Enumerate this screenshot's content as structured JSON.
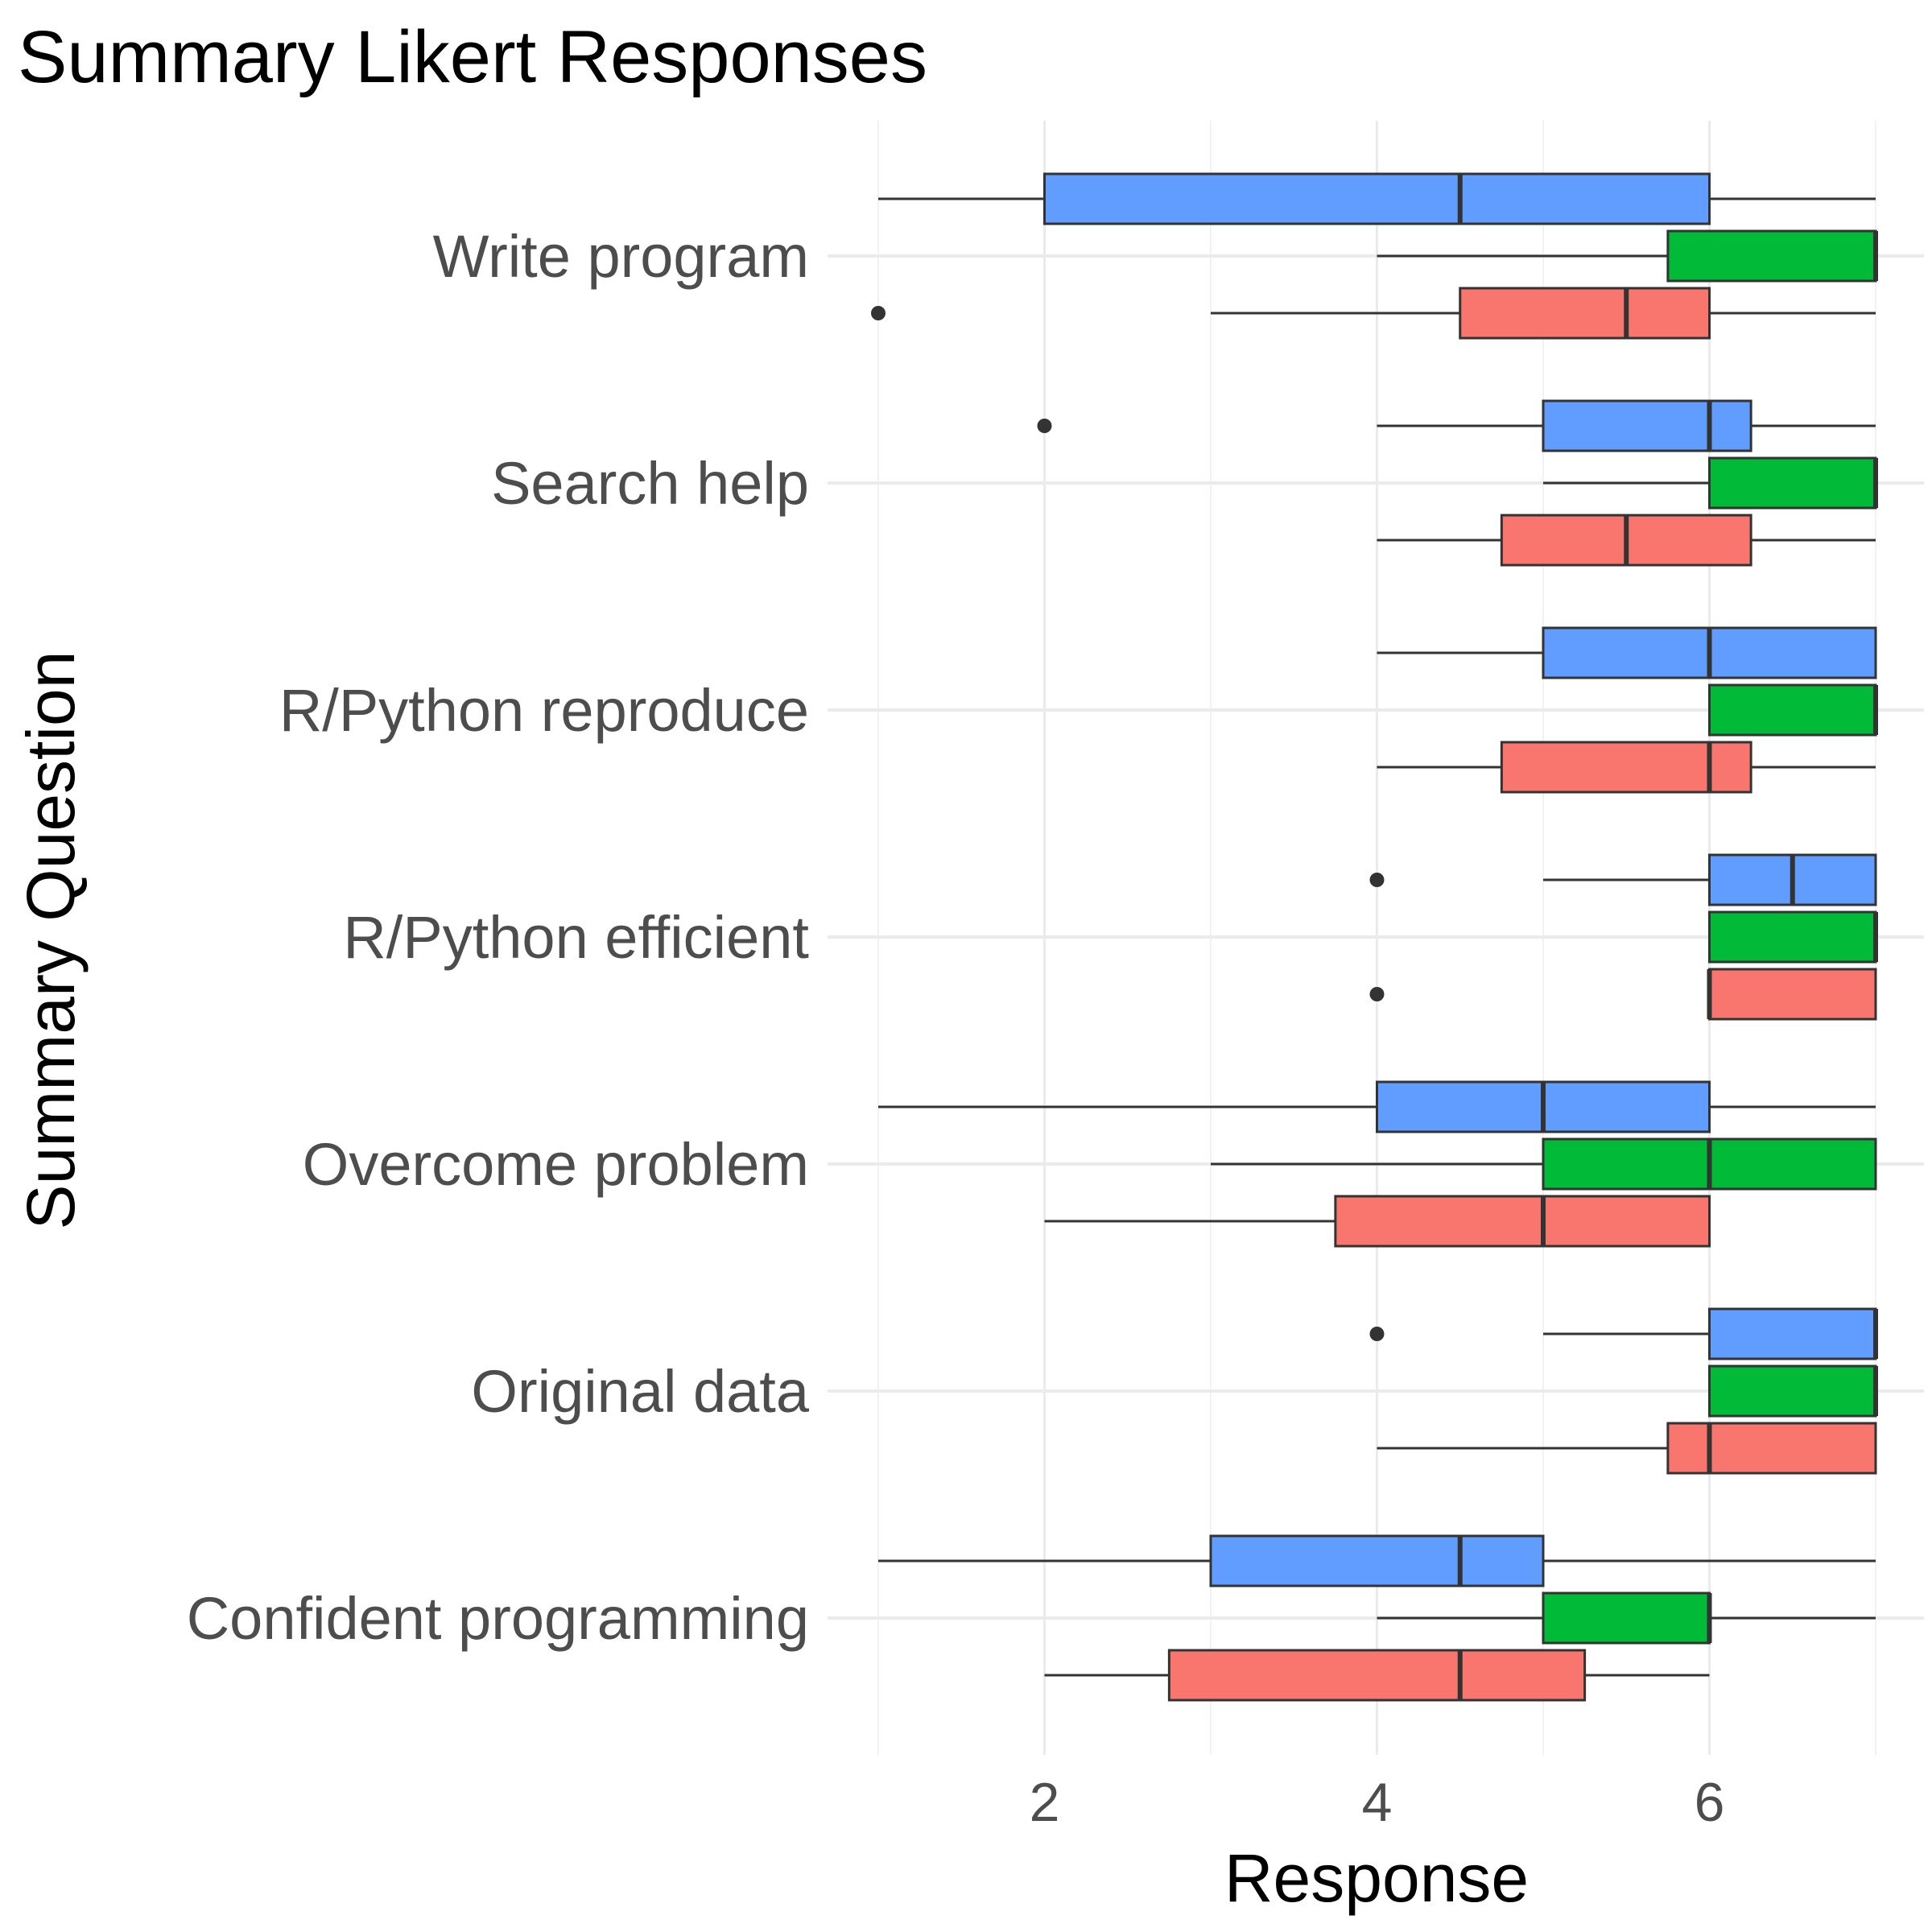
{
  "chart_data": {
    "type": "boxplot",
    "title": "Summary Likert Responses",
    "xlabel": "Response",
    "ylabel": "Summary Question",
    "xlim": [
      1,
      7
    ],
    "x_ticks": [
      2,
      4,
      6
    ],
    "x_minor_grid": [
      1,
      3,
      5,
      7
    ],
    "grid": true,
    "orientation": "horizontal",
    "categories": [
      "Write program",
      "Search help",
      "R/Python reproduce",
      "R/Python efficient",
      "Overcome problem",
      "Original data",
      "Confident programming"
    ],
    "group_colors": {
      "blue": "#619cff",
      "green": "#00ba38",
      "red": "#f8766d"
    },
    "group_order_top_to_bottom": [
      "blue",
      "green",
      "red"
    ],
    "outline_color": "#333333",
    "boxes": [
      {
        "category": "Write program",
        "group": "blue",
        "whisker_low": 1,
        "q1": 2,
        "median": 4.5,
        "q3": 6,
        "whisker_high": 7,
        "outliers": []
      },
      {
        "category": "Write program",
        "group": "green",
        "whisker_low": 4,
        "q1": 5.75,
        "median": 7,
        "q3": 7,
        "whisker_high": 7,
        "outliers": []
      },
      {
        "category": "Write program",
        "group": "red",
        "whisker_low": 3,
        "q1": 4.5,
        "median": 5.5,
        "q3": 6,
        "whisker_high": 7,
        "outliers": [
          1
        ]
      },
      {
        "category": "Search help",
        "group": "blue",
        "whisker_low": 4,
        "q1": 5,
        "median": 6,
        "q3": 6.25,
        "whisker_high": 7,
        "outliers": [
          2
        ]
      },
      {
        "category": "Search help",
        "group": "green",
        "whisker_low": 5,
        "q1": 6,
        "median": 7,
        "q3": 7,
        "whisker_high": 7,
        "outliers": []
      },
      {
        "category": "Search help",
        "group": "red",
        "whisker_low": 4,
        "q1": 4.75,
        "median": 5.5,
        "q3": 6.25,
        "whisker_high": 7,
        "outliers": []
      },
      {
        "category": "R/Python reproduce",
        "group": "blue",
        "whisker_low": 4,
        "q1": 5,
        "median": 6,
        "q3": 7,
        "whisker_high": 7,
        "outliers": []
      },
      {
        "category": "R/Python reproduce",
        "group": "green",
        "whisker_low": 6,
        "q1": 6,
        "median": 7,
        "q3": 7,
        "whisker_high": 7,
        "outliers": []
      },
      {
        "category": "R/Python reproduce",
        "group": "red",
        "whisker_low": 4,
        "q1": 4.75,
        "median": 6,
        "q3": 6.25,
        "whisker_high": 7,
        "outliers": []
      },
      {
        "category": "R/Python efficient",
        "group": "blue",
        "whisker_low": 5,
        "q1": 6,
        "median": 6.5,
        "q3": 7,
        "whisker_high": 7,
        "outliers": [
          4
        ]
      },
      {
        "category": "R/Python efficient",
        "group": "green",
        "whisker_low": 6,
        "q1": 6,
        "median": 7,
        "q3": 7,
        "whisker_high": 7,
        "outliers": []
      },
      {
        "category": "R/Python efficient",
        "group": "red",
        "whisker_low": 6,
        "q1": 6,
        "median": 6,
        "q3": 7,
        "whisker_high": 7,
        "outliers": [
          4
        ]
      },
      {
        "category": "Overcome problem",
        "group": "blue",
        "whisker_low": 1,
        "q1": 4,
        "median": 5,
        "q3": 6,
        "whisker_high": 7,
        "outliers": []
      },
      {
        "category": "Overcome problem",
        "group": "green",
        "whisker_low": 3,
        "q1": 5,
        "median": 6,
        "q3": 7,
        "whisker_high": 7,
        "outliers": []
      },
      {
        "category": "Overcome problem",
        "group": "red",
        "whisker_low": 2,
        "q1": 3.75,
        "median": 5,
        "q3": 6,
        "whisker_high": 6,
        "outliers": []
      },
      {
        "category": "Original data",
        "group": "blue",
        "whisker_low": 5,
        "q1": 6,
        "median": 7,
        "q3": 7,
        "whisker_high": 7,
        "outliers": [
          4
        ]
      },
      {
        "category": "Original data",
        "group": "green",
        "whisker_low": 6,
        "q1": 6,
        "median": 7,
        "q3": 7,
        "whisker_high": 7,
        "outliers": []
      },
      {
        "category": "Original data",
        "group": "red",
        "whisker_low": 4,
        "q1": 5.75,
        "median": 6,
        "q3": 7,
        "whisker_high": 7,
        "outliers": []
      },
      {
        "category": "Confident programming",
        "group": "blue",
        "whisker_low": 1,
        "q1": 3,
        "median": 4.5,
        "q3": 5,
        "whisker_high": 7,
        "outliers": []
      },
      {
        "category": "Confident programming",
        "group": "green",
        "whisker_low": 4,
        "q1": 5,
        "median": 6,
        "q3": 6,
        "whisker_high": 7,
        "outliers": []
      },
      {
        "category": "Confident programming",
        "group": "red",
        "whisker_low": 2,
        "q1": 2.75,
        "median": 4.5,
        "q3": 5.25,
        "whisker_high": 6,
        "outliers": []
      }
    ]
  }
}
